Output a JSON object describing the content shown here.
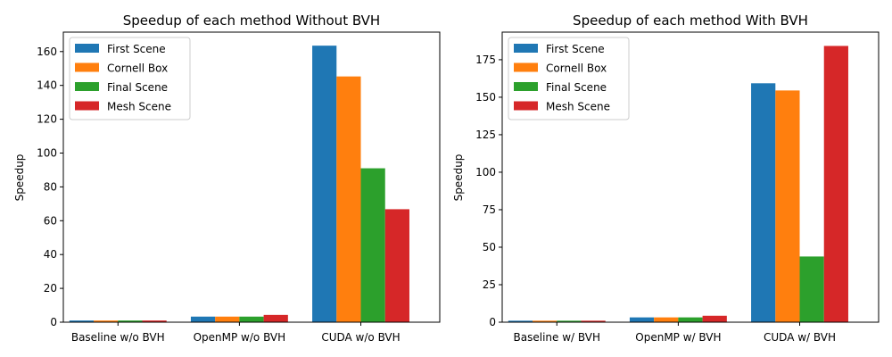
{
  "chart_data": [
    {
      "type": "bar",
      "title": "Speedup of each method Without BVH",
      "xlabel": "",
      "ylabel": "Speedup",
      "categories": [
        "Baseline w/o BVH",
        "OpenMP w/o BVH",
        "CUDA w/o BVH"
      ],
      "ylim": [
        0,
        171.5
      ],
      "yticks": [
        0,
        20,
        40,
        60,
        80,
        100,
        120,
        140,
        160
      ],
      "legend_position": "top-left",
      "grid": false,
      "series": [
        {
          "name": "First Scene",
          "color": "#1f77b4",
          "values": [
            1,
            3.3,
            163.5
          ]
        },
        {
          "name": "Cornell Box",
          "color": "#ff7f0e",
          "values": [
            1,
            3.3,
            145.3
          ]
        },
        {
          "name": "Final Scene",
          "color": "#2ca02c",
          "values": [
            1,
            3.3,
            91
          ]
        },
        {
          "name": "Mesh Scene",
          "color": "#d62728",
          "values": [
            1,
            4.3,
            66.8
          ]
        }
      ]
    },
    {
      "type": "bar",
      "title": "Speedup of each method With BVH",
      "xlabel": "",
      "ylabel": "Speedup",
      "categories": [
        "Baseline w/ BVH",
        "OpenMP w/ BVH",
        "CUDA w/ BVH"
      ],
      "ylim": [
        0,
        193.4
      ],
      "yticks": [
        0,
        25,
        50,
        75,
        100,
        125,
        150,
        175
      ],
      "legend_position": "top-left",
      "grid": false,
      "series": [
        {
          "name": "First Scene",
          "color": "#1f77b4",
          "values": [
            1,
            3.2,
            159.3
          ]
        },
        {
          "name": "Cornell Box",
          "color": "#ff7f0e",
          "values": [
            1,
            3.2,
            154.5
          ]
        },
        {
          "name": "Final Scene",
          "color": "#2ca02c",
          "values": [
            1,
            3.2,
            43.8
          ]
        },
        {
          "name": "Mesh Scene",
          "color": "#d62728",
          "values": [
            1,
            4.3,
            184.2
          ]
        }
      ]
    }
  ]
}
